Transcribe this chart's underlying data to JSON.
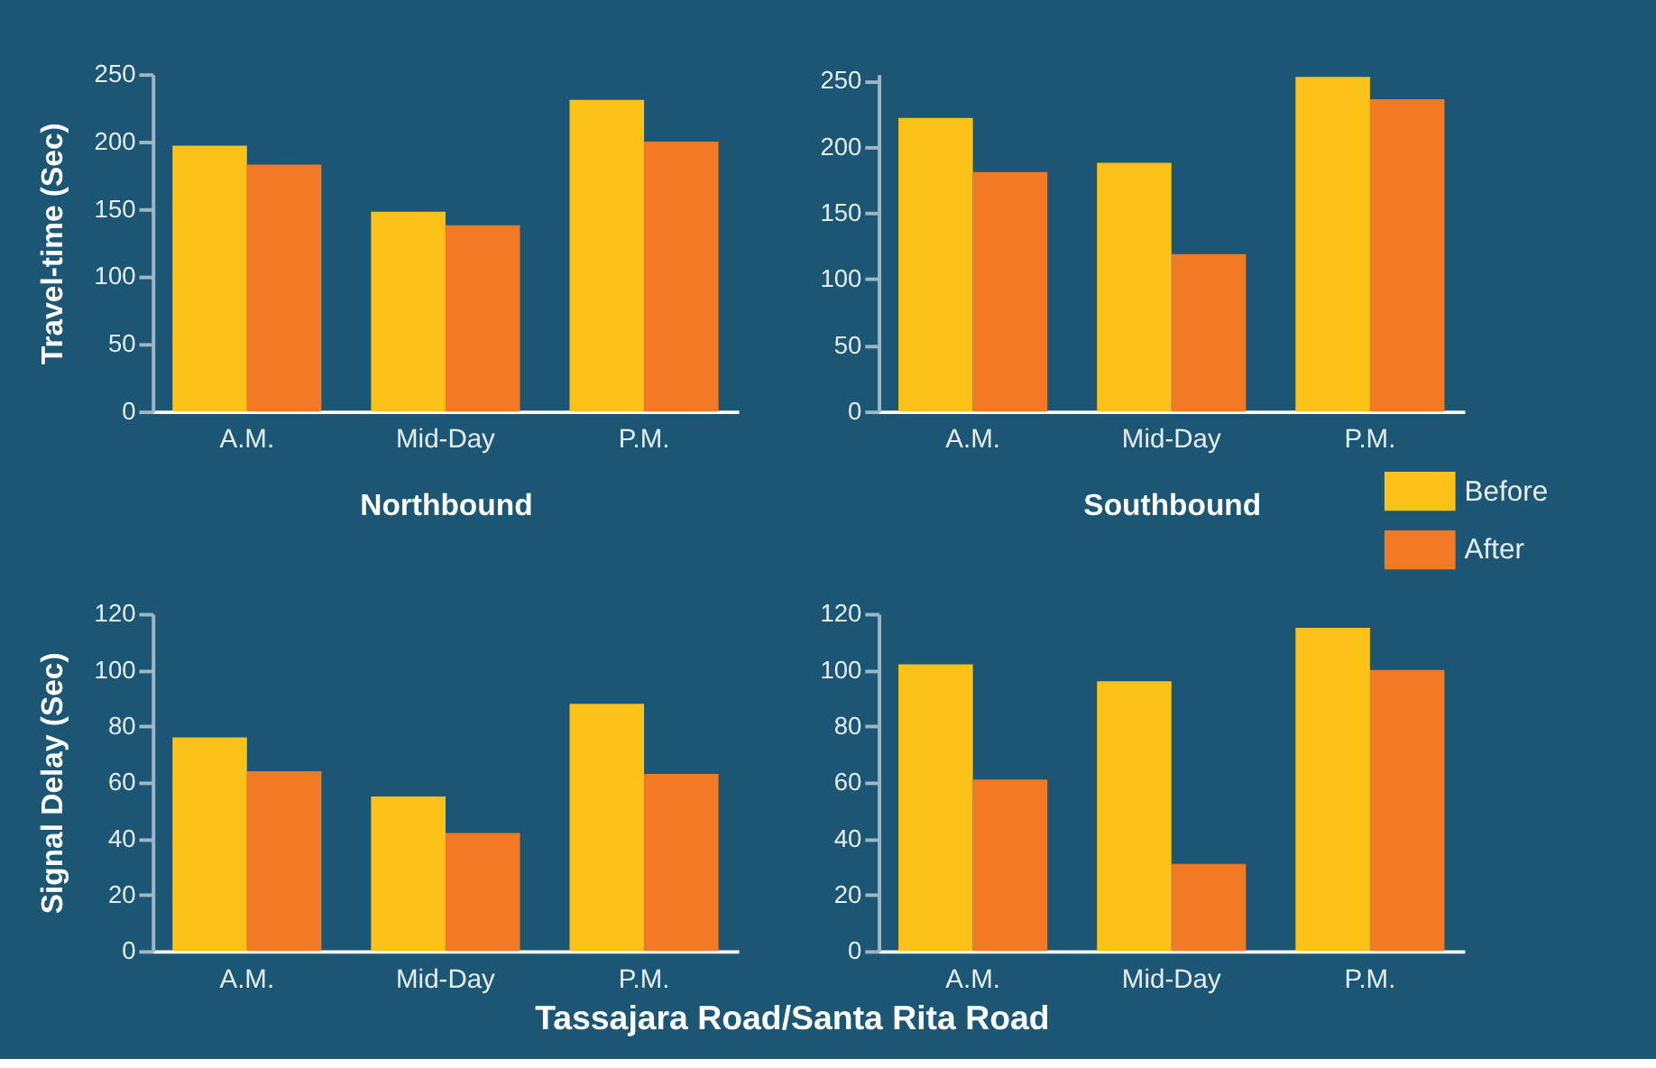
{
  "chart_data": [
    {
      "type": "bar",
      "xlabel": "Northbound",
      "ylabel": "Travel-time (Sec)",
      "categories": [
        "A.M.",
        "Mid-Day",
        "P.M."
      ],
      "ylim": [
        0,
        250
      ],
      "yticks": [
        0,
        50,
        100,
        150,
        200,
        250
      ],
      "grid": false,
      "legend": "right",
      "series": [
        {
          "name": "Before",
          "color": "#fdc218",
          "values": [
            197,
            148,
            231
          ]
        },
        {
          "name": "After",
          "color": "#f27a24",
          "values": [
            183,
            138,
            200
          ]
        }
      ]
    },
    {
      "type": "bar",
      "xlabel": "Southbound",
      "categories": [
        "A.M.",
        "Mid-Day",
        "P.M."
      ],
      "ylim": [
        0,
        255
      ],
      "yticks": [
        0,
        50,
        100,
        150,
        200,
        250
      ],
      "grid": false,
      "legend": false,
      "series": [
        {
          "color": "#fdc218",
          "values": [
            222,
            188,
            253
          ]
        },
        {
          "color": "#f27a24",
          "values": [
            181,
            119,
            236
          ]
        }
      ]
    },
    {
      "type": "bar",
      "ylabel": "Signal Delay (Sec)",
      "categories": [
        "A.M.",
        "Mid-Day",
        "P.M."
      ],
      "ylim": [
        0,
        120
      ],
      "yticks": [
        0,
        20,
        40,
        60,
        80,
        100,
        120
      ],
      "grid": false,
      "legend": false,
      "annotations": [
        "Tassajara Road/Santa Rita Road"
      ],
      "series": [
        {
          "color": "#fdc218",
          "values": [
            76,
            55,
            88
          ]
        },
        {
          "color": "#f27a24",
          "values": [
            64,
            42,
            63
          ]
        }
      ]
    },
    {
      "type": "bar",
      "categories": [
        "A.M.",
        "Mid-Day",
        "P.M."
      ],
      "ylim": [
        0,
        120
      ],
      "yticks": [
        0,
        20,
        40,
        60,
        80,
        100,
        120
      ],
      "grid": false,
      "legend": false,
      "series": [
        {
          "color": "#fdc218",
          "values": [
            102,
            96,
            115
          ]
        },
        {
          "color": "#f27a24",
          "values": [
            61,
            31,
            100
          ]
        }
      ]
    }
  ]
}
